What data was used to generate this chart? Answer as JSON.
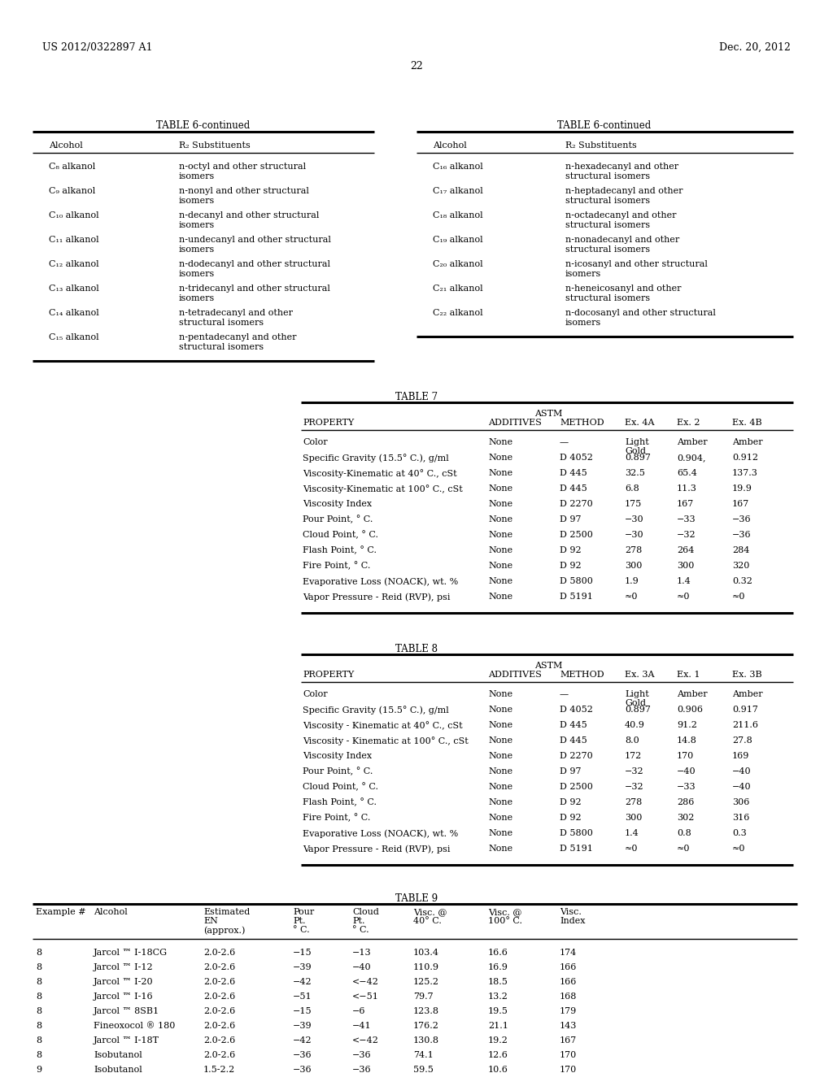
{
  "header_left": "US 2012/0322897 A1",
  "header_right": "Dec. 20, 2012",
  "page_number": "22",
  "bg_color": "#ffffff",
  "table6_title": "TABLE 6-continued",
  "table6_left_headers": [
    "Alcohol",
    "R₂ Substituents"
  ],
  "table6_left_data": [
    [
      "C₈ alkanol",
      "n-octyl and other structural\nisomers"
    ],
    [
      "C₉ alkanol",
      "n-nonyl and other structural\nisomers"
    ],
    [
      "C₁₀ alkanol",
      "n-decanyl and other structural\nisomers"
    ],
    [
      "C₁₁ alkanol",
      "n-undecanyl and other structural\nisomers"
    ],
    [
      "C₁₂ alkanol",
      "n-dodecanyl and other structural\nisomers"
    ],
    [
      "C₁₃ alkanol",
      "n-tridecanyl and other structural\nisomers"
    ],
    [
      "C₁₄ alkanol",
      "n-tetradecanyl and other\nstructural isomers"
    ],
    [
      "C₁₅ alkanol",
      "n-pentadecanyl and other\nstructural isomers"
    ]
  ],
  "table6_right_headers": [
    "Alcohol",
    "R₂ Substituents"
  ],
  "table6_right_data": [
    [
      "C₁₆ alkanol",
      "n-hexadecanyl and other\nstructural isomers"
    ],
    [
      "C₁₇ alkanol",
      "n-heptadecanyl and other\nstructural isomers"
    ],
    [
      "C₁₈ alkanol",
      "n-octadecanyl and other\nstructural isomers"
    ],
    [
      "C₁₉ alkanol",
      "n-nonadecanyl and other\nstructural isomers"
    ],
    [
      "C₂₀ alkanol",
      "n-icosanyl and other structural\nisomers"
    ],
    [
      "C₂₁ alkanol",
      "n-heneicosanyl and other\nstructural isomers"
    ],
    [
      "C₂₂ alkanol",
      "n-docosanyl and other structural\nisomers"
    ]
  ],
  "table7_title": "TABLE 7",
  "table7_headers_row2": [
    "PROPERTY",
    "ADDITIVES",
    "METHOD",
    "Ex. 4A",
    "Ex. 2",
    "Ex. 4B"
  ],
  "table7_data": [
    [
      "Color",
      "None",
      "—",
      "Light\nGold",
      "Amber",
      "Amber"
    ],
    [
      "Specific Gravity (15.5° C.), g/ml",
      "None",
      "D 4052",
      "0.897",
      "0.904,",
      "0.912"
    ],
    [
      "Viscosity-Kinematic at 40° C., cSt",
      "None",
      "D 445",
      "32.5",
      "65.4",
      "137.3"
    ],
    [
      "Viscosity-Kinematic at 100° C., cSt",
      "None",
      "D 445",
      "6.8",
      "11.3",
      "19.9"
    ],
    [
      "Viscosity Index",
      "None",
      "D 2270",
      "175",
      "167",
      "167"
    ],
    [
      "Pour Point, ° C.",
      "None",
      "D 97",
      "−30",
      "−33",
      "−36"
    ],
    [
      "Cloud Point, ° C.",
      "None",
      "D 2500",
      "−30",
      "−32",
      "−36"
    ],
    [
      "Flash Point, ° C.",
      "None",
      "D 92",
      "278",
      "264",
      "284"
    ],
    [
      "Fire Point, ° C.",
      "None",
      "D 92",
      "300",
      "300",
      "320"
    ],
    [
      "Evaporative Loss (NOACK), wt. %",
      "None",
      "D 5800",
      "1.9",
      "1.4",
      "0.32"
    ],
    [
      "Vapor Pressure - Reid (RVP), psi",
      "None",
      "D 5191",
      "≈0",
      "≈0",
      "≈0"
    ]
  ],
  "table8_title": "TABLE 8",
  "table8_headers_row2": [
    "PROPERTY",
    "ADDITIVES",
    "METHOD",
    "Ex. 3A",
    "Ex. 1",
    "Ex. 3B"
  ],
  "table8_data": [
    [
      "Color",
      "None",
      "—",
      "Light\nGold",
      "Amber",
      "Amber"
    ],
    [
      "Specific Gravity (15.5° C.), g/ml",
      "None",
      "D 4052",
      "0.897",
      "0.906",
      "0.917"
    ],
    [
      "Viscosity - Kinematic at 40° C., cSt",
      "None",
      "D 445",
      "40.9",
      "91.2",
      "211.6"
    ],
    [
      "Viscosity - Kinematic at 100° C., cSt",
      "None",
      "D 445",
      "8.0",
      "14.8",
      "27.8"
    ],
    [
      "Viscosity Index",
      "None",
      "D 2270",
      "172",
      "170",
      "169"
    ],
    [
      "Pour Point, ° C.",
      "None",
      "D 97",
      "−32",
      "−40",
      "−40"
    ],
    [
      "Cloud Point, ° C.",
      "None",
      "D 2500",
      "−32",
      "−33",
      "−40"
    ],
    [
      "Flash Point, ° C.",
      "None",
      "D 92",
      "278",
      "286",
      "306"
    ],
    [
      "Fire Point, ° C.",
      "None",
      "D 92",
      "300",
      "302",
      "316"
    ],
    [
      "Evaporative Loss (NOACK), wt. %",
      "None",
      "D 5800",
      "1.4",
      "0.8",
      "0.3"
    ],
    [
      "Vapor Pressure - Reid (RVP), psi",
      "None",
      "D 5191",
      "≈0",
      "≈0",
      "≈0"
    ]
  ],
  "table9_title": "TABLE 9",
  "table9_headers": [
    "Example #",
    "Alcohol",
    "Estimated\nEN\n(approx.)",
    "Pour\nPt.\n° C.",
    "Cloud\nPt.\n° C.",
    "Visc. @\n40° C.",
    "Visc. @\n100° C.",
    "Visc.\nIndex"
  ],
  "table9_data": [
    [
      "8",
      "Jarcol ™ I-18CG",
      "2.0-2.6",
      "−15",
      "−13",
      "103.4",
      "16.6",
      "174"
    ],
    [
      "8",
      "Jarcol ™ I-12",
      "2.0-2.6",
      "−39",
      "−40",
      "110.9",
      "16.9",
      "166"
    ],
    [
      "8",
      "Jarcol ™ I-20",
      "2.0-2.6",
      "−42",
      "<−42",
      "125.2",
      "18.5",
      "166"
    ],
    [
      "8",
      "Jarcol ™ I-16",
      "2.0-2.6",
      "−51",
      "<−51",
      "79.7",
      "13.2",
      "168"
    ],
    [
      "8",
      "Jarcol ™ 8SB1",
      "2.0-2.6",
      "−15",
      "−6",
      "123.8",
      "19.5",
      "179"
    ],
    [
      "8",
      "Fineoxocol ® 180",
      "2.0-2.6",
      "−39",
      "−41",
      "176.2",
      "21.1",
      "143"
    ],
    [
      "8",
      "Jarcol ™ I-18T",
      "2.0-2.6",
      "−42",
      "<−42",
      "130.8",
      "19.2",
      "167"
    ],
    [
      "8",
      "Isobutanol",
      "2.0-2.6",
      "−36",
      "−36",
      "74.1",
      "12.6",
      "170"
    ],
    [
      "9",
      "Isobutanol",
      "1.5-2.2",
      "−36",
      "−36",
      "59.5",
      "10.6",
      "170"
    ]
  ]
}
